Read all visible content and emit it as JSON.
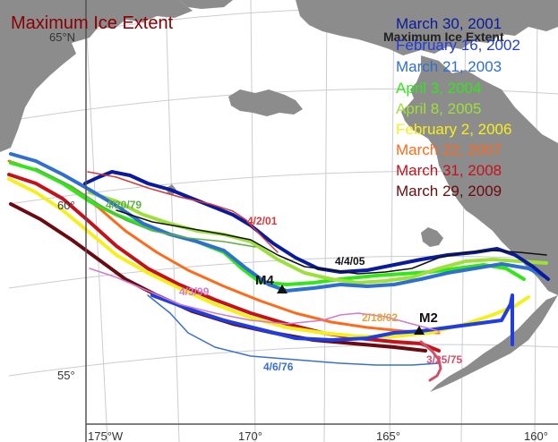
{
  "title": "Maximum Ice Extent",
  "legend": {
    "header": "Maximum Ice Extent",
    "entries": [
      {
        "label": "March 30, 2001",
        "color": "#0a1a9c"
      },
      {
        "label": "February 16, 2002",
        "color": "#1f3de0"
      },
      {
        "label": "March 21, 2003",
        "color": "#2e6fd0"
      },
      {
        "label": "April 3, 2004",
        "color": "#33e61a"
      },
      {
        "label": "April 8, 2005",
        "color": "#9ee03a"
      },
      {
        "label": "February 2, 2006",
        "color": "#f5ef1f"
      },
      {
        "label": "March 22, 2007",
        "color": "#ff6a1a"
      },
      {
        "label": "March 31, 2008",
        "color": "#c4121a"
      },
      {
        "label": "March 29, 2009",
        "color": "#6b0a10"
      }
    ]
  },
  "latitude_labels": [
    "65°N",
    "60°",
    "55°"
  ],
  "longitude_labels": [
    "175°W",
    "170°",
    "165°",
    "160°"
  ],
  "ice_edge_labels": [
    {
      "text": "4/20/79",
      "color": "#5fae4a"
    },
    {
      "text": "4/2/01",
      "color": "#d43a3a"
    },
    {
      "text": "4/4/05",
      "color": "#111111"
    },
    {
      "text": "4/3/99",
      "color": "#d07ad0"
    },
    {
      "text": "2/18/02",
      "color": "#e6a33a"
    },
    {
      "text": "4/6/76",
      "color": "#3a6fd0"
    },
    {
      "text": "3/25/75",
      "color": "#d0506a"
    }
  ],
  "stations": [
    {
      "name": "M4"
    },
    {
      "name": "M2"
    }
  ],
  "colors": {
    "land": "#8c8c8c",
    "sea": "#ffffff",
    "graticule": "#c8ccd4",
    "title": "#8b0000"
  }
}
